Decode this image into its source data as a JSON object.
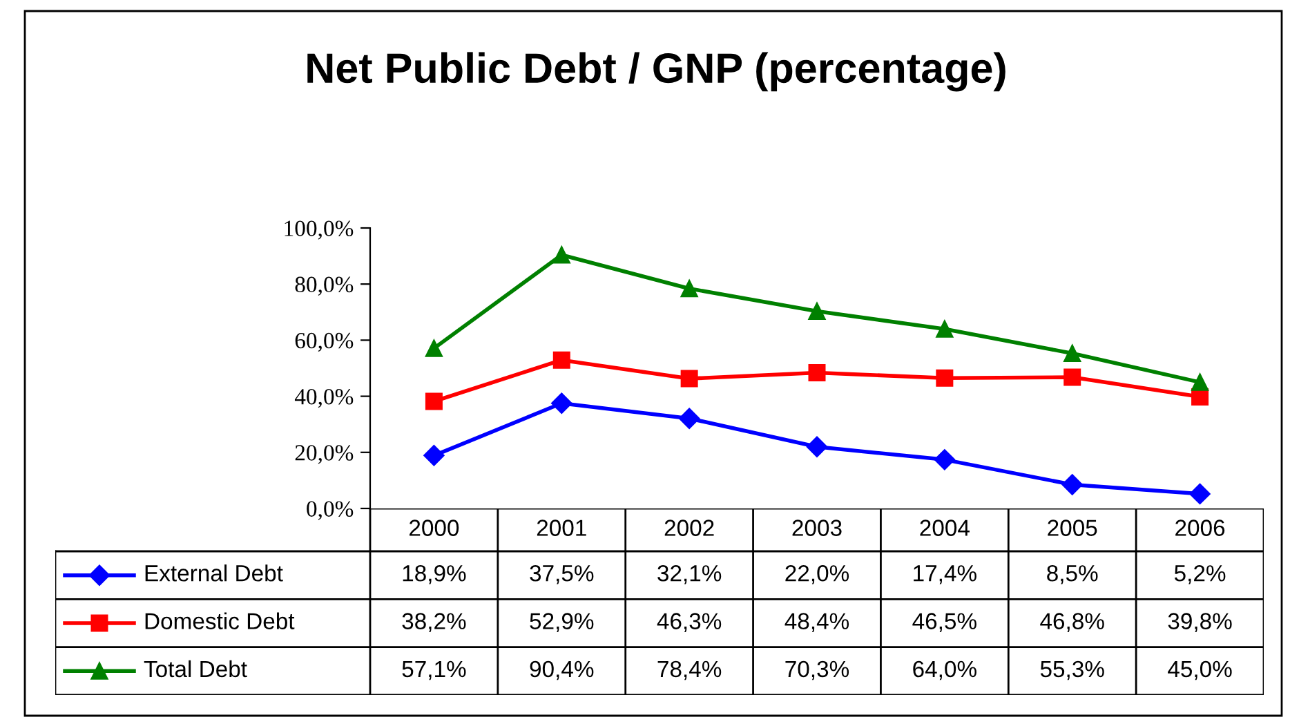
{
  "chart_data": {
    "type": "line",
    "title": "Net Public Debt / GNP (percentage)",
    "categories": [
      "2000",
      "2001",
      "2002",
      "2003",
      "2004",
      "2005",
      "2006"
    ],
    "series": [
      {
        "name": "External Debt",
        "color": "#0000ff",
        "marker": "diamond",
        "values": [
          18.9,
          37.5,
          32.1,
          22.0,
          17.4,
          8.5,
          5.2
        ],
        "value_labels": [
          "18,9%",
          "37,5%",
          "32,1%",
          "22,0%",
          "17,4%",
          "8,5%",
          "5,2%"
        ]
      },
      {
        "name": "Domestic Debt",
        "color": "#ff0000",
        "marker": "square",
        "values": [
          38.2,
          52.9,
          46.3,
          48.4,
          46.5,
          46.8,
          39.8
        ],
        "value_labels": [
          "38,2%",
          "52,9%",
          "46,3%",
          "48,4%",
          "46,5%",
          "46,8%",
          "39,8%"
        ]
      },
      {
        "name": "Total Debt",
        "color": "#008000",
        "marker": "triangle",
        "values": [
          57.1,
          90.4,
          78.4,
          70.3,
          64.0,
          55.3,
          45.0
        ],
        "value_labels": [
          "57,1%",
          "90,4%",
          "78,4%",
          "70,3%",
          "64,0%",
          "55,3%",
          "45,0%"
        ]
      }
    ],
    "ylim": [
      0,
      100
    ],
    "yticks": [
      {
        "value": 0,
        "label": "0,0%"
      },
      {
        "value": 20,
        "label": "20,0%"
      },
      {
        "value": 40,
        "label": "40,0%"
      },
      {
        "value": 60,
        "label": "60,0%"
      },
      {
        "value": 80,
        "label": "80,0%"
      },
      {
        "value": 100,
        "label": "100,0%"
      }
    ],
    "grid": false,
    "legend": "bottom",
    "line_style": "solid"
  }
}
